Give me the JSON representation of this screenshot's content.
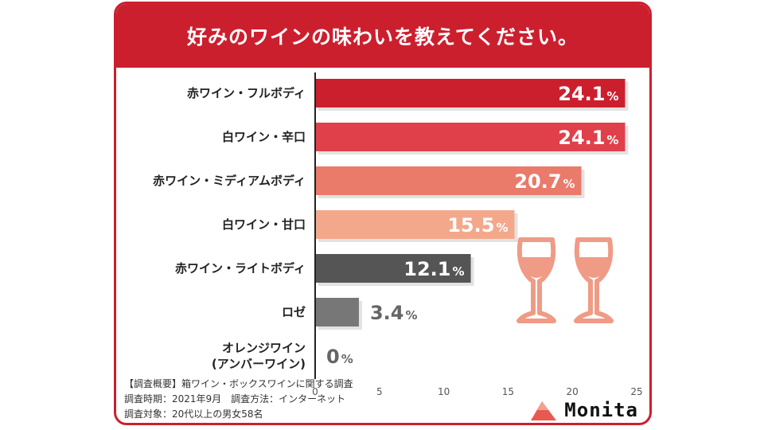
{
  "title": "好みのワインの味わいを教えてください。",
  "chart_data": {
    "type": "bar",
    "orientation": "horizontal",
    "categories": [
      "赤ワイン・フルボディ",
      "白ワイン・辛口",
      "赤ワイン・ミディアムボディ",
      "白ワイン・甘口",
      "赤ワイン・ライトボディ",
      "ロゼ",
      "オレンジワイン|(アンバーワイン)"
    ],
    "values": [
      24.1,
      24.1,
      20.7,
      15.5,
      12.1,
      3.4,
      0
    ],
    "value_labels": [
      "24.1",
      "24.1",
      "20.7",
      "15.5",
      "12.1",
      "3.4",
      "0"
    ],
    "unit": "%",
    "colors": [
      "#cc1f2e",
      "#e0404a",
      "#ea7a6a",
      "#f3a88c",
      "#555555",
      "#777777",
      "#999999"
    ],
    "xlim": [
      0,
      25
    ],
    "xticks": [
      0,
      5,
      10,
      15,
      20,
      25
    ],
    "grid": false
  },
  "notes": [
    "【調査概要】箱ワイン・ボックスワインに関する調査",
    "調査時期：2021年9月　調査方法：インターネット",
    "調査対象：20代以上の男女58名"
  ],
  "brand": "Monita",
  "icons": [
    "wine-glass-icon",
    "wine-glass-icon",
    "monita-logo-icon"
  ],
  "accent_color": "#cc1f2e",
  "glass_color": "#ef9b86"
}
